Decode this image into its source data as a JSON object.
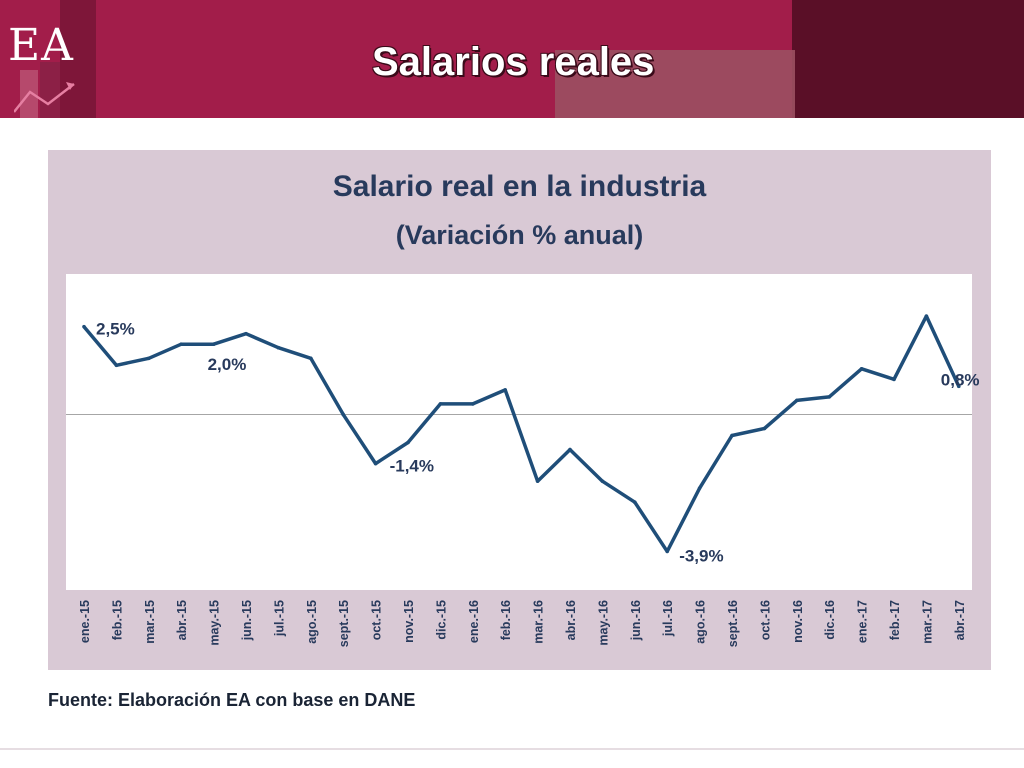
{
  "page": {
    "title": "Salarios reales",
    "logo_text": "EA",
    "source": "Fuente: Elaboración EA con base en DANE"
  },
  "colors": {
    "header": "#a21d4a",
    "header_dark": "#5a0f27",
    "panel": "#d9c9d5",
    "line": "#1f4e79",
    "title_text": "#283a5c"
  },
  "chart_data": {
    "type": "line",
    "title": "Salario real en la industria",
    "subtitle": "(Variación % anual)",
    "xlabel": "",
    "ylabel": "",
    "ylim": [
      -5.0,
      4.0
    ],
    "grid": false,
    "zero_line": true,
    "categories": [
      "ene.-15",
      "feb.-15",
      "mar.-15",
      "abr.-15",
      "may.-15",
      "jun.-15",
      "jul.-15",
      "ago.-15",
      "sept.-15",
      "oct.-15",
      "nov.-15",
      "dic.-15",
      "ene.-16",
      "feb.-16",
      "mar.-16",
      "abr.-16",
      "may.-16",
      "jun.-16",
      "jul.-16",
      "ago.-16",
      "sept.-16",
      "oct.-16",
      "nov.-16",
      "dic.-16",
      "ene.-17",
      "feb.-17",
      "mar.-17",
      "abr.-17"
    ],
    "series": [
      {
        "name": "",
        "values": [
          2.5,
          1.4,
          1.6,
          2.0,
          2.0,
          2.3,
          1.9,
          1.6,
          0.0,
          -1.4,
          -0.8,
          0.3,
          0.3,
          0.7,
          -1.9,
          -1.0,
          -1.9,
          -2.5,
          -3.9,
          -2.1,
          -0.6,
          -0.4,
          0.4,
          0.5,
          1.3,
          1.0,
          2.8,
          0.8
        ]
      }
    ],
    "annotations": [
      {
        "index": 0,
        "label": "2,5%"
      },
      {
        "index": 4,
        "label": "2,0%"
      },
      {
        "index": 9,
        "label": "-1,4%"
      },
      {
        "index": 18,
        "label": "-3,9%"
      },
      {
        "index": 27,
        "label": "0,8%"
      }
    ]
  }
}
